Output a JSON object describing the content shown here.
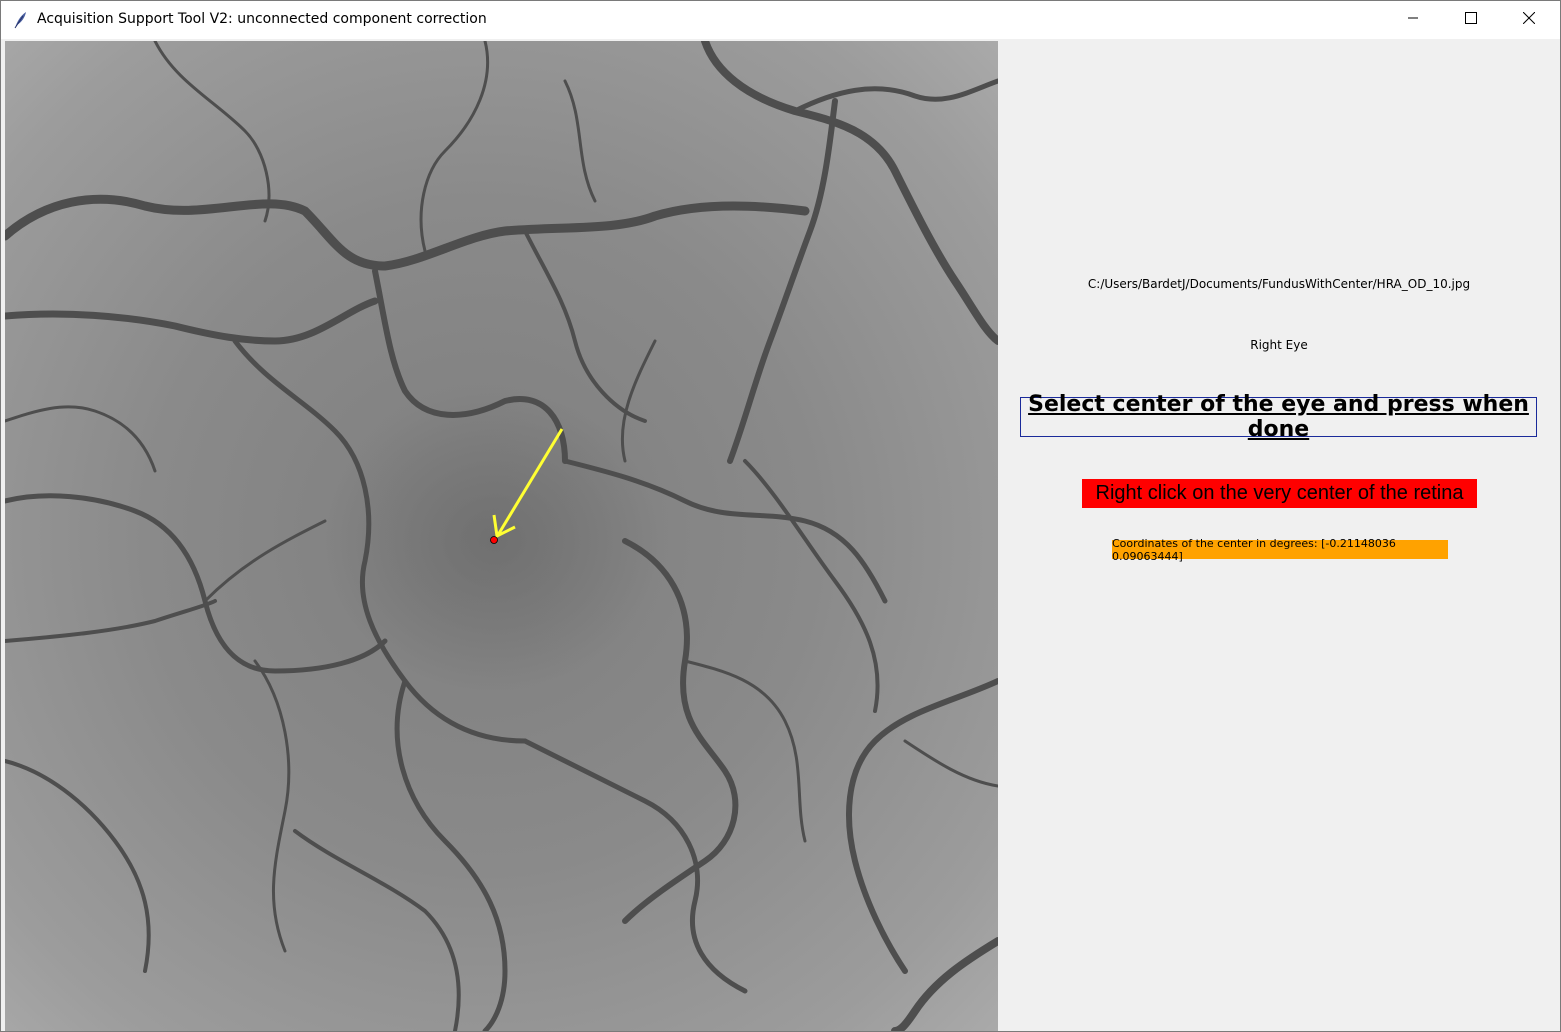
{
  "window": {
    "title": "Acquisition Support Tool V2: unconnected component correction",
    "controls": {
      "minimize": "minimize-icon",
      "maximize": "maximize-icon",
      "close": "close-icon"
    }
  },
  "canvas": {
    "image": "fundus-image",
    "center_marker_color": "#ff0000",
    "arrow_color": "#ffff33"
  },
  "panel": {
    "file_path": "C:/Users/BardetJ/Documents/FundusWithCenter/HRA_OD_10.jpg",
    "eye_label": "Right Eye",
    "done_button_label": "Select center of the eye and press when done",
    "instruction": "Right click on the very center of the retina",
    "coordinates_text": "Coordinates of the center in degrees: [-0.21148036  0.09063444]"
  },
  "colors": {
    "instruction_bg": "#ff0000",
    "coordinates_bg": "#ffa200",
    "button_border": "#1a2a9a"
  }
}
